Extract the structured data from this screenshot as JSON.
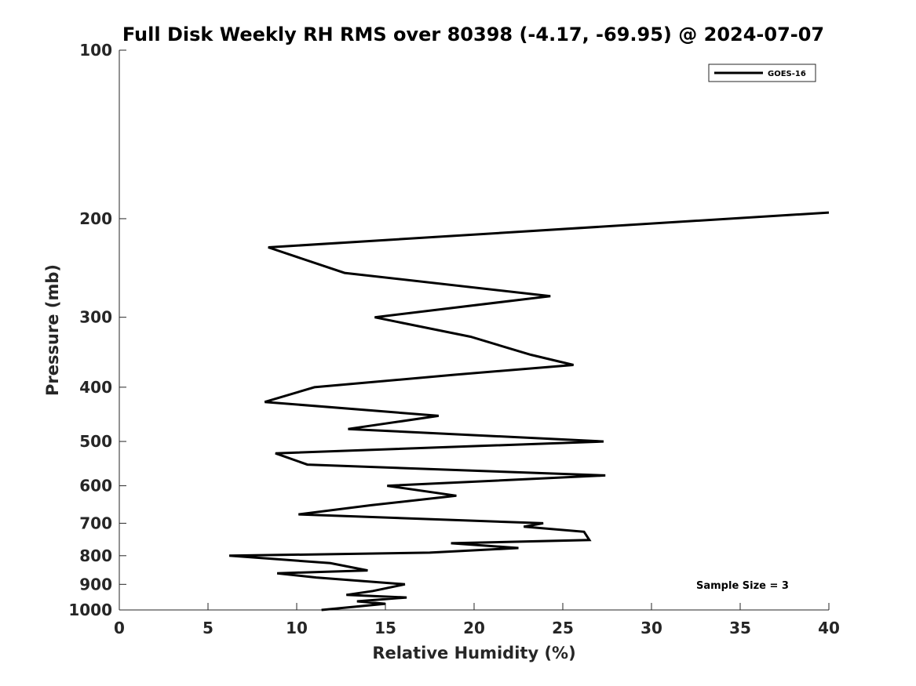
{
  "chart_data": {
    "type": "line",
    "title": "Full Disk Weekly RH RMS over 80398 (-4.17, -69.95) @ 2024-07-07",
    "xlabel": "Relative Humidity (%)",
    "ylabel": "Pressure (mb)",
    "xlim": [
      0,
      40
    ],
    "ylim": [
      100,
      1000
    ],
    "yscale": "log",
    "y_reversed": true,
    "grid": false,
    "legend_position": "top-right",
    "xticks": [
      0,
      5,
      10,
      15,
      20,
      25,
      30,
      35,
      40
    ],
    "yticks": [
      100,
      200,
      300,
      400,
      500,
      600,
      700,
      800,
      900,
      1000
    ],
    "annotation": "Sample Size = 3",
    "series": [
      {
        "name": "GOES-16",
        "color": "#000000",
        "points": [
          {
            "x": 40.0,
            "y": 195
          },
          {
            "x": 8.4,
            "y": 225
          },
          {
            "x": 12.7,
            "y": 250
          },
          {
            "x": 24.3,
            "y": 275
          },
          {
            "x": 14.4,
            "y": 300
          },
          {
            "x": 19.8,
            "y": 325
          },
          {
            "x": 23.2,
            "y": 350
          },
          {
            "x": 25.6,
            "y": 365
          },
          {
            "x": 18.9,
            "y": 380
          },
          {
            "x": 11.0,
            "y": 400
          },
          {
            "x": 8.2,
            "y": 425
          },
          {
            "x": 18.0,
            "y": 450
          },
          {
            "x": 12.9,
            "y": 475
          },
          {
            "x": 27.3,
            "y": 500
          },
          {
            "x": 8.8,
            "y": 525
          },
          {
            "x": 10.6,
            "y": 550
          },
          {
            "x": 27.4,
            "y": 575
          },
          {
            "x": 15.1,
            "y": 600
          },
          {
            "x": 19.0,
            "y": 625
          },
          {
            "x": 14.2,
            "y": 650
          },
          {
            "x": 10.1,
            "y": 675
          },
          {
            "x": 23.9,
            "y": 700
          },
          {
            "x": 22.8,
            "y": 710
          },
          {
            "x": 26.2,
            "y": 725
          },
          {
            "x": 26.5,
            "y": 750
          },
          {
            "x": 18.7,
            "y": 760
          },
          {
            "x": 22.5,
            "y": 775
          },
          {
            "x": 17.5,
            "y": 790
          },
          {
            "x": 6.2,
            "y": 800
          },
          {
            "x": 11.9,
            "y": 825
          },
          {
            "x": 14.0,
            "y": 850
          },
          {
            "x": 8.9,
            "y": 860
          },
          {
            "x": 11.1,
            "y": 875
          },
          {
            "x": 16.1,
            "y": 900
          },
          {
            "x": 14.3,
            "y": 925
          },
          {
            "x": 12.8,
            "y": 940
          },
          {
            "x": 16.2,
            "y": 950
          },
          {
            "x": 13.4,
            "y": 965
          },
          {
            "x": 15.0,
            "y": 975
          },
          {
            "x": 11.4,
            "y": 1000
          }
        ]
      }
    ]
  }
}
